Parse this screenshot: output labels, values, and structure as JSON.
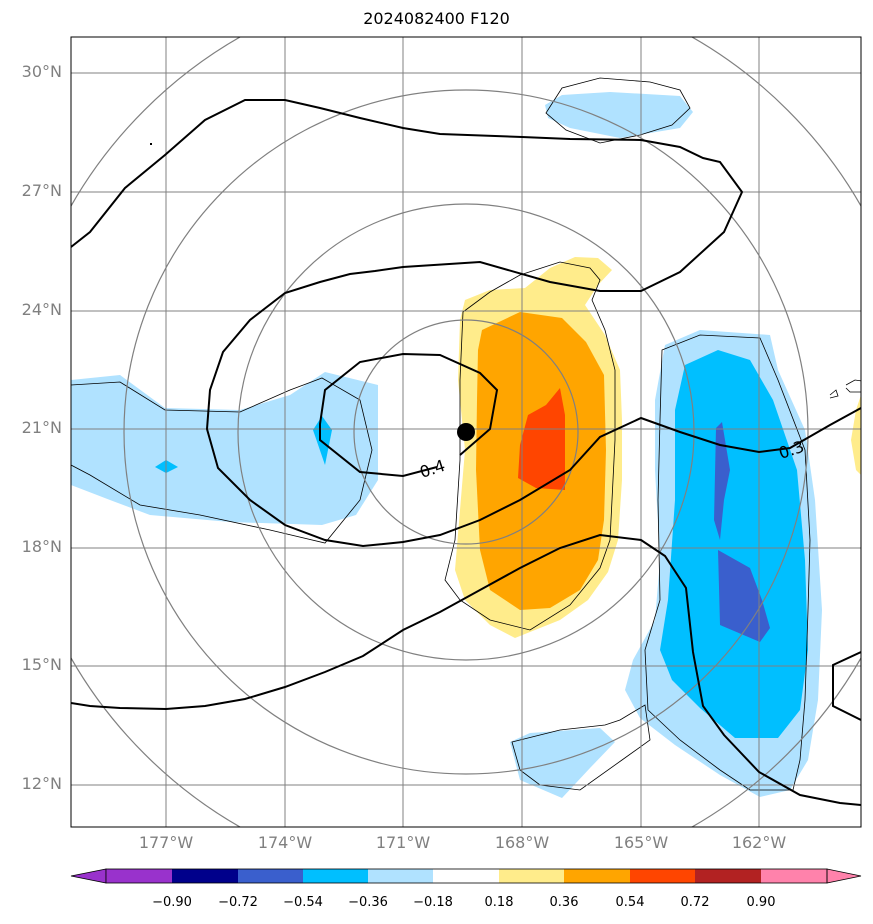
{
  "title": "2024082400 F120",
  "lat_labels": [
    "30°N",
    "27°N",
    "24°N",
    "21°N",
    "18°N",
    "15°N",
    "12°N"
  ],
  "lon_labels": [
    "177°W",
    "174°W",
    "171°W",
    "168°W",
    "165°W",
    "162°W"
  ],
  "contour_labels": [
    "0.4",
    "0.3"
  ],
  "colorbar": {
    "ticks": [
      "−0.90",
      "−0.72",
      "−0.54",
      "−0.36",
      "−0.18",
      "0.18",
      "0.36",
      "0.54",
      "0.72",
      "0.90"
    ],
    "colors": [
      "#9932cc",
      "#00008b",
      "#3a5fcd",
      "#00bfff",
      "#b0e2ff",
      "#ffffff",
      "#ffec8b",
      "#ffa500",
      "#ff4500",
      "#b22222",
      "#ff82ab"
    ]
  },
  "colors": {
    "shade_neg_light": "#b0e2ff",
    "shade_neg_mid": "#00bfff",
    "shade_neg_dark": "#3a5fcd",
    "shade_pos_light": "#ffec8b",
    "shade_pos_mid": "#ffa500",
    "shade_pos_dark": "#ff4500",
    "grid": "#808080"
  },
  "storm_marker": "black-dot"
}
